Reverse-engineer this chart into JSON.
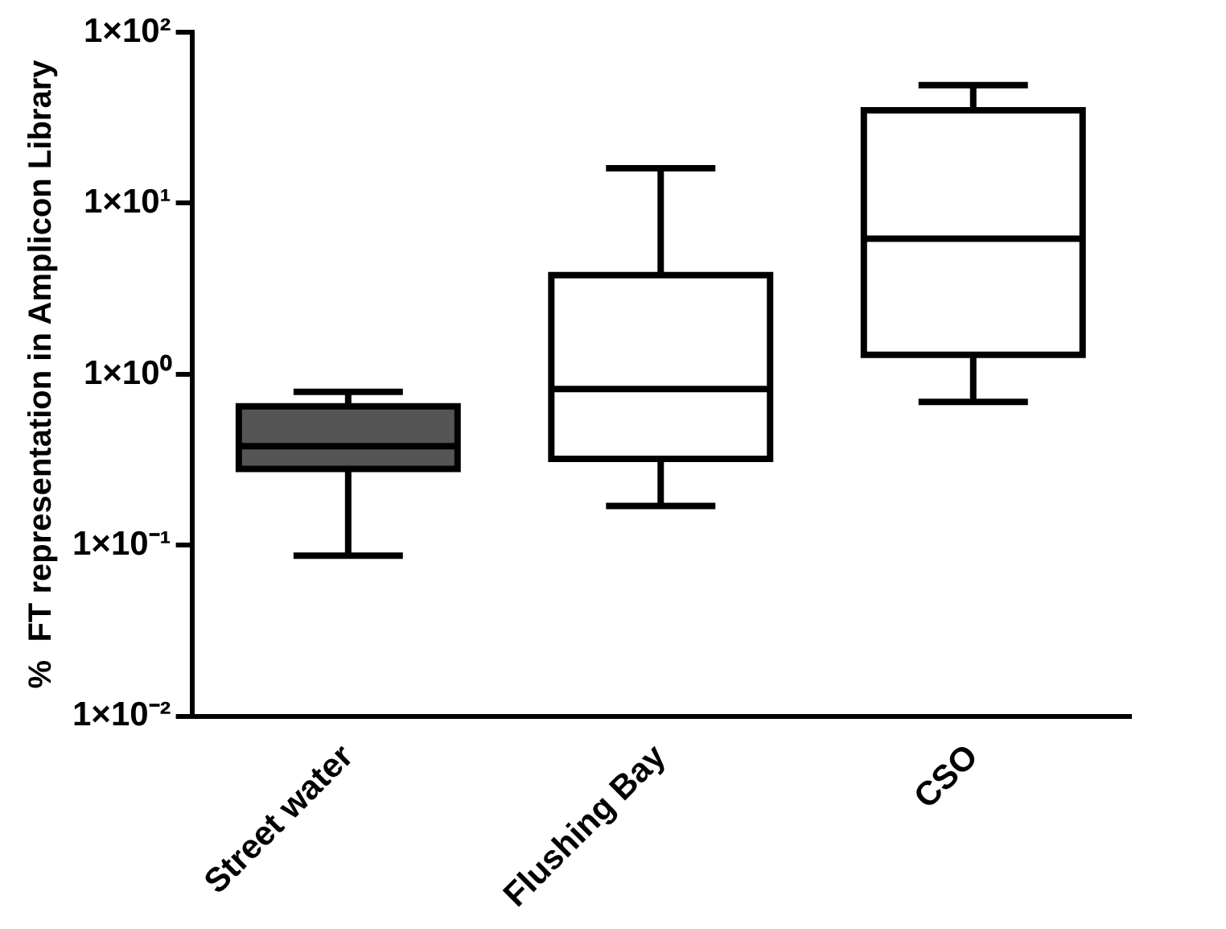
{
  "chart_data": {
    "type": "box",
    "ylabel": "%  FT representation in Amplicon Library",
    "categories": [
      "Street water",
      "Flushing Bay",
      "CSO"
    ],
    "boxes": [
      {
        "low": 0.087,
        "q1": 0.28,
        "median": 0.38,
        "q3": 0.65,
        "high": 0.79
      },
      {
        "low": 0.17,
        "q1": 0.32,
        "median": 0.82,
        "q3": 3.8,
        "high": 16
      },
      {
        "low": 0.69,
        "q1": 1.3,
        "median": 6.2,
        "q3": 35,
        "high": 49
      }
    ],
    "colors": [
      "#555555",
      "#ffffff",
      "#ffffff"
    ],
    "log": "y",
    "ylim": [
      0.01,
      100
    ],
    "yticks": [
      {
        "value": 0.01,
        "label": "1×10⁻²"
      },
      {
        "value": 0.1,
        "label": "1×10⁻¹"
      },
      {
        "value": 1,
        "label": "1×10⁰"
      },
      {
        "value": 10,
        "label": "1×10¹"
      },
      {
        "value": 100,
        "label": "1×10²"
      }
    ],
    "grid": false,
    "legend": false
  }
}
